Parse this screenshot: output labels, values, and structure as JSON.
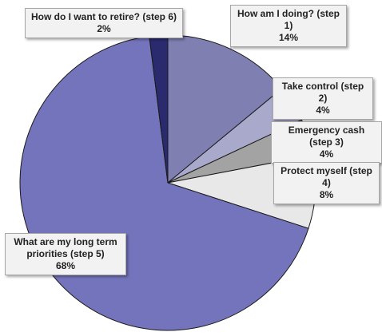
{
  "chart_data": {
    "type": "pie",
    "title": "",
    "slices": [
      {
        "label": "How am I doing? (step 1)",
        "value": 14,
        "value_label": "14%",
        "color": "#7f7fb2"
      },
      {
        "label": "Take control (step 2)",
        "value": 4,
        "value_label": "4%",
        "color": "#a9a9cc"
      },
      {
        "label": "Emergency cash (step 3)",
        "value": 4,
        "value_label": "4%",
        "color": "#a3a3a3"
      },
      {
        "label": "Protect myself (step 4)",
        "value": 8,
        "value_label": "8%",
        "color": "#e8e8e8"
      },
      {
        "label": "What are my long term priorities (step 5)",
        "value": 68,
        "value_label": "68%",
        "color": "#7474bc"
      },
      {
        "label": "How do I want to retire? (step 6)",
        "value": 2,
        "value_label": "2%",
        "color": "#2a2a6e"
      }
    ],
    "start_angle_deg": 0,
    "direction": "clockwise",
    "legend": "none",
    "data_labels": "callouts"
  }
}
